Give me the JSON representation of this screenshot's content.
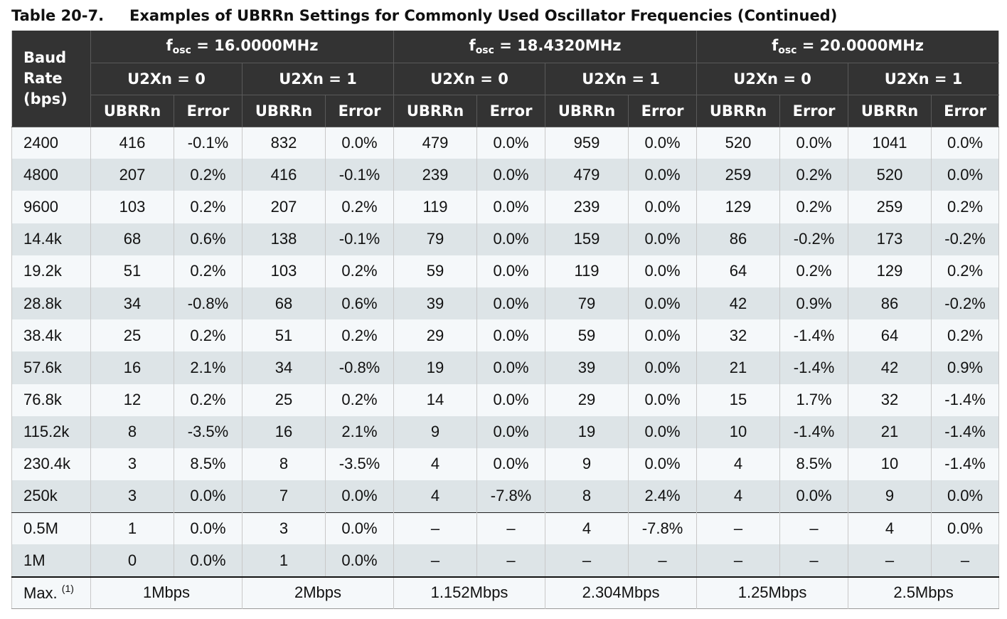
{
  "title": {
    "number": "Table 20-7.",
    "text": "Examples of UBRRn Settings for Commonly Used Oscillator Frequencies (Continued)"
  },
  "header": {
    "baud_line1": "Baud",
    "baud_line2": "Rate",
    "baud_line3": "(bps)",
    "freqs": [
      {
        "f": "f",
        "sub": "osc",
        "value": " = 16.0000MHz"
      },
      {
        "f": "f",
        "sub": "osc",
        "value": " = 18.4320MHz"
      },
      {
        "f": "f",
        "sub": "osc",
        "value": " = 20.0000MHz"
      }
    ],
    "modes": [
      "U2Xn = 0",
      "U2Xn = 1",
      "U2Xn = 0",
      "U2Xn = 1",
      "U2Xn = 0",
      "U2Xn = 1"
    ],
    "cols": [
      "UBRRn",
      "Error",
      "UBRRn",
      "Error",
      "UBRRn",
      "Error",
      "UBRRn",
      "Error",
      "UBRRn",
      "Error",
      "UBRRn",
      "Error"
    ]
  },
  "rows": [
    {
      "baud": "2400",
      "cells": [
        "416",
        "-0.1%",
        "832",
        "0.0%",
        "479",
        "0.0%",
        "959",
        "0.0%",
        "520",
        "0.0%",
        "1041",
        "0.0%"
      ]
    },
    {
      "baud": "4800",
      "cells": [
        "207",
        "0.2%",
        "416",
        "-0.1%",
        "239",
        "0.0%",
        "479",
        "0.0%",
        "259",
        "0.2%",
        "520",
        "0.0%"
      ]
    },
    {
      "baud": "9600",
      "cells": [
        "103",
        "0.2%",
        "207",
        "0.2%",
        "119",
        "0.0%",
        "239",
        "0.0%",
        "129",
        "0.2%",
        "259",
        "0.2%"
      ]
    },
    {
      "baud": "14.4k",
      "cells": [
        "68",
        "0.6%",
        "138",
        "-0.1%",
        "79",
        "0.0%",
        "159",
        "0.0%",
        "86",
        "-0.2%",
        "173",
        "-0.2%"
      ]
    },
    {
      "baud": "19.2k",
      "cells": [
        "51",
        "0.2%",
        "103",
        "0.2%",
        "59",
        "0.0%",
        "119",
        "0.0%",
        "64",
        "0.2%",
        "129",
        "0.2%"
      ]
    },
    {
      "baud": "28.8k",
      "cells": [
        "34",
        "-0.8%",
        "68",
        "0.6%",
        "39",
        "0.0%",
        "79",
        "0.0%",
        "42",
        "0.9%",
        "86",
        "-0.2%"
      ]
    },
    {
      "baud": "38.4k",
      "cells": [
        "25",
        "0.2%",
        "51",
        "0.2%",
        "29",
        "0.0%",
        "59",
        "0.0%",
        "32",
        "-1.4%",
        "64",
        "0.2%"
      ]
    },
    {
      "baud": "57.6k",
      "cells": [
        "16",
        "2.1%",
        "34",
        "-0.8%",
        "19",
        "0.0%",
        "39",
        "0.0%",
        "21",
        "-1.4%",
        "42",
        "0.9%"
      ]
    },
    {
      "baud": "76.8k",
      "cells": [
        "12",
        "0.2%",
        "25",
        "0.2%",
        "14",
        "0.0%",
        "29",
        "0.0%",
        "15",
        "1.7%",
        "32",
        "-1.4%"
      ]
    },
    {
      "baud": "115.2k",
      "cells": [
        "8",
        "-3.5%",
        "16",
        "2.1%",
        "9",
        "0.0%",
        "19",
        "0.0%",
        "10",
        "-1.4%",
        "21",
        "-1.4%"
      ]
    },
    {
      "baud": "230.4k",
      "cells": [
        "3",
        "8.5%",
        "8",
        "-3.5%",
        "4",
        "0.0%",
        "9",
        "0.0%",
        "4",
        "8.5%",
        "10",
        "-1.4%"
      ]
    },
    {
      "baud": "250k",
      "cells": [
        "3",
        "0.0%",
        "7",
        "0.0%",
        "4",
        "-7.8%",
        "8",
        "2.4%",
        "4",
        "0.0%",
        "9",
        "0.0%"
      ]
    },
    {
      "baud": "0.5M",
      "cells": [
        "1",
        "0.0%",
        "3",
        "0.0%",
        "–",
        "–",
        "4",
        "-7.8%",
        "–",
        "–",
        "4",
        "0.0%"
      ]
    },
    {
      "baud": "1M",
      "cells": [
        "0",
        "0.0%",
        "1",
        "0.0%",
        "–",
        "–",
        "–",
        "–",
        "–",
        "–",
        "–",
        "–"
      ]
    }
  ],
  "max_row": {
    "label": "Max. ",
    "note": "(1)",
    "values": [
      "1Mbps",
      "2Mbps",
      "1.152Mbps",
      "2.304Mbps",
      "1.25Mbps",
      "2.5Mbps"
    ]
  }
}
